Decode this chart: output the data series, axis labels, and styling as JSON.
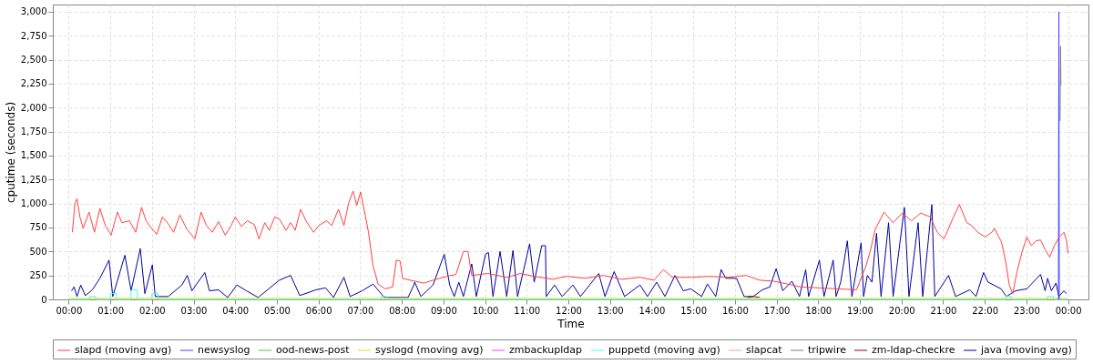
{
  "chart_data": {
    "type": "line",
    "xlabel": "Time",
    "ylabel": "cputime (seconds)",
    "xlim": [
      -0.38,
      24.49
    ],
    "xticks": [
      {
        "value": 0,
        "label": "00:00"
      },
      {
        "value": 1,
        "label": "01:00"
      },
      {
        "value": 2,
        "label": "02:00"
      },
      {
        "value": 3,
        "label": "03:00"
      },
      {
        "value": 4,
        "label": "04:00"
      },
      {
        "value": 5,
        "label": "05:00"
      },
      {
        "value": 6,
        "label": "06:00"
      },
      {
        "value": 7,
        "label": "07:00"
      },
      {
        "value": 8,
        "label": "08:00"
      },
      {
        "value": 9,
        "label": "09:00"
      },
      {
        "value": 10,
        "label": "10:00"
      },
      {
        "value": 11,
        "label": "11:00"
      },
      {
        "value": 12,
        "label": "12:00"
      },
      {
        "value": 13,
        "label": "13:00"
      },
      {
        "value": 14,
        "label": "14:00"
      },
      {
        "value": 15,
        "label": "15:00"
      },
      {
        "value": 16,
        "label": "16:00"
      },
      {
        "value": 17,
        "label": "17:00"
      },
      {
        "value": 18,
        "label": "18:00"
      },
      {
        "value": 19,
        "label": "19:00"
      },
      {
        "value": 20,
        "label": "20:00"
      },
      {
        "value": 21,
        "label": "21:00"
      },
      {
        "value": 22,
        "label": "22:00"
      },
      {
        "value": 23,
        "label": "23:00"
      },
      {
        "value": 24,
        "label": "00:00"
      }
    ],
    "ylim": [
      0,
      3075
    ],
    "yticks": [
      0,
      250,
      500,
      750,
      {
        "value": 1000,
        "label": "1,000"
      },
      {
        "value": 1250,
        "label": "1,250"
      },
      {
        "value": 1500,
        "label": "1,500"
      },
      {
        "value": 1750,
        "label": "1,750"
      },
      {
        "value": 2000,
        "label": "2,000"
      },
      {
        "value": 2250,
        "label": "2,250"
      },
      {
        "value": 2500,
        "label": "2,500"
      },
      {
        "value": 2750,
        "label": "2,750"
      },
      {
        "value": 3000,
        "label": "3,000"
      }
    ],
    "grid": true,
    "legend": "bottom",
    "marker": "none",
    "line_style": "solid",
    "series": [
      {
        "name": "slapd (moving avg)",
        "color": "#ff4040",
        "x": [
          0.09,
          0.15,
          0.2,
          0.27,
          0.35,
          0.49,
          0.62,
          0.75,
          0.88,
          1.02,
          1.17,
          1.28,
          1.46,
          1.61,
          1.75,
          1.86,
          1.99,
          2.12,
          2.25,
          2.39,
          2.52,
          2.67,
          2.83,
          3.03,
          3.18,
          3.31,
          3.45,
          3.6,
          3.76,
          3.89,
          4.0,
          4.15,
          4.29,
          4.46,
          4.57,
          4.71,
          4.82,
          4.95,
          5.06,
          5.22,
          5.33,
          5.44,
          5.57,
          5.7,
          5.88,
          6.01,
          6.19,
          6.32,
          6.48,
          6.61,
          6.72,
          6.83,
          6.92,
          7.01,
          7.09,
          7.2,
          7.31,
          7.43,
          7.6,
          7.78,
          7.87,
          7.96,
          8.02,
          8.2,
          8.53,
          8.75,
          9.08,
          9.3,
          9.48,
          9.59,
          9.68,
          10.07,
          10.52,
          10.85,
          11.18,
          11.62,
          11.96,
          12.4,
          12.84,
          13.28,
          13.72,
          14.06,
          14.28,
          14.5,
          14.94,
          15.38,
          15.82,
          16.27,
          16.6,
          16.93,
          17.26,
          17.59,
          18.03,
          18.47,
          18.92,
          19.14,
          19.25,
          19.36,
          19.58,
          19.8,
          20.02,
          20.24,
          20.46,
          20.69,
          20.86,
          21.02,
          21.24,
          21.39,
          21.57,
          21.69,
          21.83,
          22.01,
          22.17,
          22.23,
          22.4,
          22.5,
          22.59,
          22.67,
          22.78,
          22.9,
          23.01,
          23.12,
          23.23,
          23.34,
          23.45,
          23.56,
          23.67,
          23.79,
          23.9,
          23.96,
          24.0
        ],
        "values": [
          700,
          1000,
          1050,
          860,
          740,
          910,
          700,
          950,
          770,
          670,
          910,
          800,
          820,
          700,
          960,
          820,
          740,
          680,
          860,
          790,
          700,
          880,
          740,
          630,
          910,
          770,
          700,
          810,
          670,
          760,
          860,
          760,
          820,
          780,
          630,
          800,
          720,
          860,
          840,
          720,
          800,
          720,
          940,
          820,
          700,
          770,
          820,
          770,
          940,
          770,
          1000,
          1130,
          980,
          1120,
          950,
          700,
          350,
          160,
          110,
          130,
          410,
          400,
          220,
          200,
          170,
          200,
          240,
          260,
          500,
          500,
          250,
          270,
          230,
          270,
          240,
          210,
          240,
          220,
          250,
          210,
          230,
          200,
          310,
          230,
          230,
          240,
          230,
          250,
          200,
          190,
          160,
          130,
          120,
          110,
          100,
          340,
          500,
          720,
          910,
          800,
          900,
          820,
          900,
          860,
          700,
          630,
          850,
          990,
          800,
          770,
          700,
          650,
          700,
          740,
          600,
          400,
          150,
          60,
          300,
          500,
          650,
          560,
          610,
          620,
          520,
          440,
          560,
          650,
          700,
          620,
          480
        ]
      },
      {
        "name": "newsyslog",
        "color": "#4040ff",
        "x": [
          23.77,
          23.78,
          23.79
        ],
        "values": [
          0,
          3000,
          0
        ]
      },
      {
        "name": "ood-news-post",
        "color": "#40d040"
      },
      {
        "name": "syslogd (moving avg)",
        "color": "#e0e000",
        "x": [
          0.0,
          8.0,
          12.0,
          16.0,
          20.0,
          24.0
        ],
        "values": [
          10,
          10,
          10,
          10,
          10,
          10
        ]
      },
      {
        "name": "zmbackupldap",
        "color": "#ff40ff"
      },
      {
        "name": "puppetd (moving avg)",
        "color": "#40ffff",
        "x": [
          0.0,
          0.5,
          0.5,
          0.65,
          0.65,
          1.0,
          1.0,
          1.15,
          1.15,
          1.5,
          1.5,
          1.65,
          1.65,
          2.0,
          2.0,
          2.15,
          2.15,
          7.5,
          7.5,
          7.65,
          7.65,
          22.5,
          22.5,
          22.65,
          22.65,
          23.5,
          23.5,
          23.65,
          23.65,
          24.0
        ],
        "values": [
          0,
          0,
          30,
          30,
          0,
          0,
          60,
          60,
          0,
          0,
          100,
          100,
          0,
          0,
          60,
          60,
          0,
          0,
          30,
          30,
          0,
          0,
          30,
          30,
          0,
          0,
          30,
          30,
          0,
          0
        ]
      },
      {
        "name": "slapcat",
        "color": "#ffa0a0"
      },
      {
        "name": "tripwire",
        "color": "#808080",
        "x": [
          23.81,
          23.82,
          23.83
        ],
        "values": [
          1860,
          2640,
          2230
        ]
      },
      {
        "name": "zm-ldap-checkre",
        "color": "#a00000",
        "x": [
          16.3,
          16.45,
          16.6
        ],
        "values": [
          20,
          30,
          20
        ]
      },
      {
        "name": "java (moving avg)",
        "color": "#0000a0",
        "x": [
          0.07,
          0.13,
          0.2,
          0.29,
          0.4,
          0.57,
          0.75,
          0.97,
          1.06,
          1.35,
          1.5,
          1.72,
          1.83,
          2.01,
          2.08,
          2.39,
          2.72,
          2.85,
          2.96,
          3.27,
          3.38,
          3.6,
          3.82,
          4.04,
          4.27,
          4.55,
          5.06,
          5.33,
          5.55,
          5.94,
          6.17,
          6.36,
          6.61,
          6.76,
          7.05,
          7.31,
          7.58,
          8.15,
          8.29,
          8.31,
          8.46,
          8.75,
          9.02,
          9.15,
          9.26,
          9.37,
          9.48,
          9.68,
          9.79,
          10.01,
          10.08,
          10.19,
          10.36,
          10.52,
          10.67,
          10.78,
          11.07,
          11.18,
          11.36,
          11.45,
          11.47,
          11.67,
          11.85,
          12.11,
          12.29,
          12.73,
          12.88,
          13.1,
          13.35,
          13.72,
          13.9,
          14.12,
          14.32,
          14.56,
          14.76,
          14.94,
          15.2,
          15.34,
          15.54,
          15.67,
          15.78,
          16.04,
          16.22,
          16.44,
          16.66,
          16.84,
          16.99,
          17.15,
          17.37,
          17.55,
          17.7,
          17.77,
          18.03,
          18.14,
          18.36,
          18.43,
          18.54,
          18.7,
          18.81,
          19.03,
          19.09,
          19.18,
          19.29,
          19.4,
          19.51,
          19.69,
          19.8,
          20.07,
          20.18,
          20.4,
          20.51,
          20.73,
          20.8,
          21.13,
          21.3,
          21.64,
          21.79,
          21.97,
          22.08,
          22.39,
          22.52,
          22.74,
          23.01,
          23.34,
          23.45,
          23.51,
          23.6,
          23.71,
          23.78,
          23.9,
          23.96
        ],
        "values": [
          90,
          130,
          30,
          150,
          40,
          100,
          220,
          410,
          30,
          460,
          90,
          530,
          60,
          360,
          30,
          30,
          150,
          250,
          90,
          280,
          90,
          100,
          20,
          150,
          90,
          20,
          200,
          250,
          40,
          100,
          120,
          20,
          230,
          30,
          90,
          160,
          20,
          20,
          150,
          180,
          30,
          150,
          470,
          150,
          30,
          180,
          30,
          370,
          30,
          470,
          490,
          30,
          500,
          30,
          510,
          30,
          580,
          180,
          560,
          560,
          30,
          150,
          30,
          150,
          30,
          270,
          30,
          290,
          30,
          150,
          30,
          180,
          30,
          250,
          90,
          110,
          30,
          160,
          30,
          310,
          220,
          220,
          30,
          30,
          100,
          130,
          320,
          90,
          190,
          30,
          310,
          30,
          410,
          30,
          410,
          30,
          180,
          610,
          30,
          590,
          30,
          250,
          180,
          690,
          30,
          800,
          30,
          960,
          30,
          800,
          30,
          990,
          30,
          250,
          30,
          100,
          30,
          280,
          180,
          110,
          30,
          90,
          110,
          260,
          90,
          220,
          90,
          170,
          30,
          90,
          60
        ]
      }
    ]
  }
}
